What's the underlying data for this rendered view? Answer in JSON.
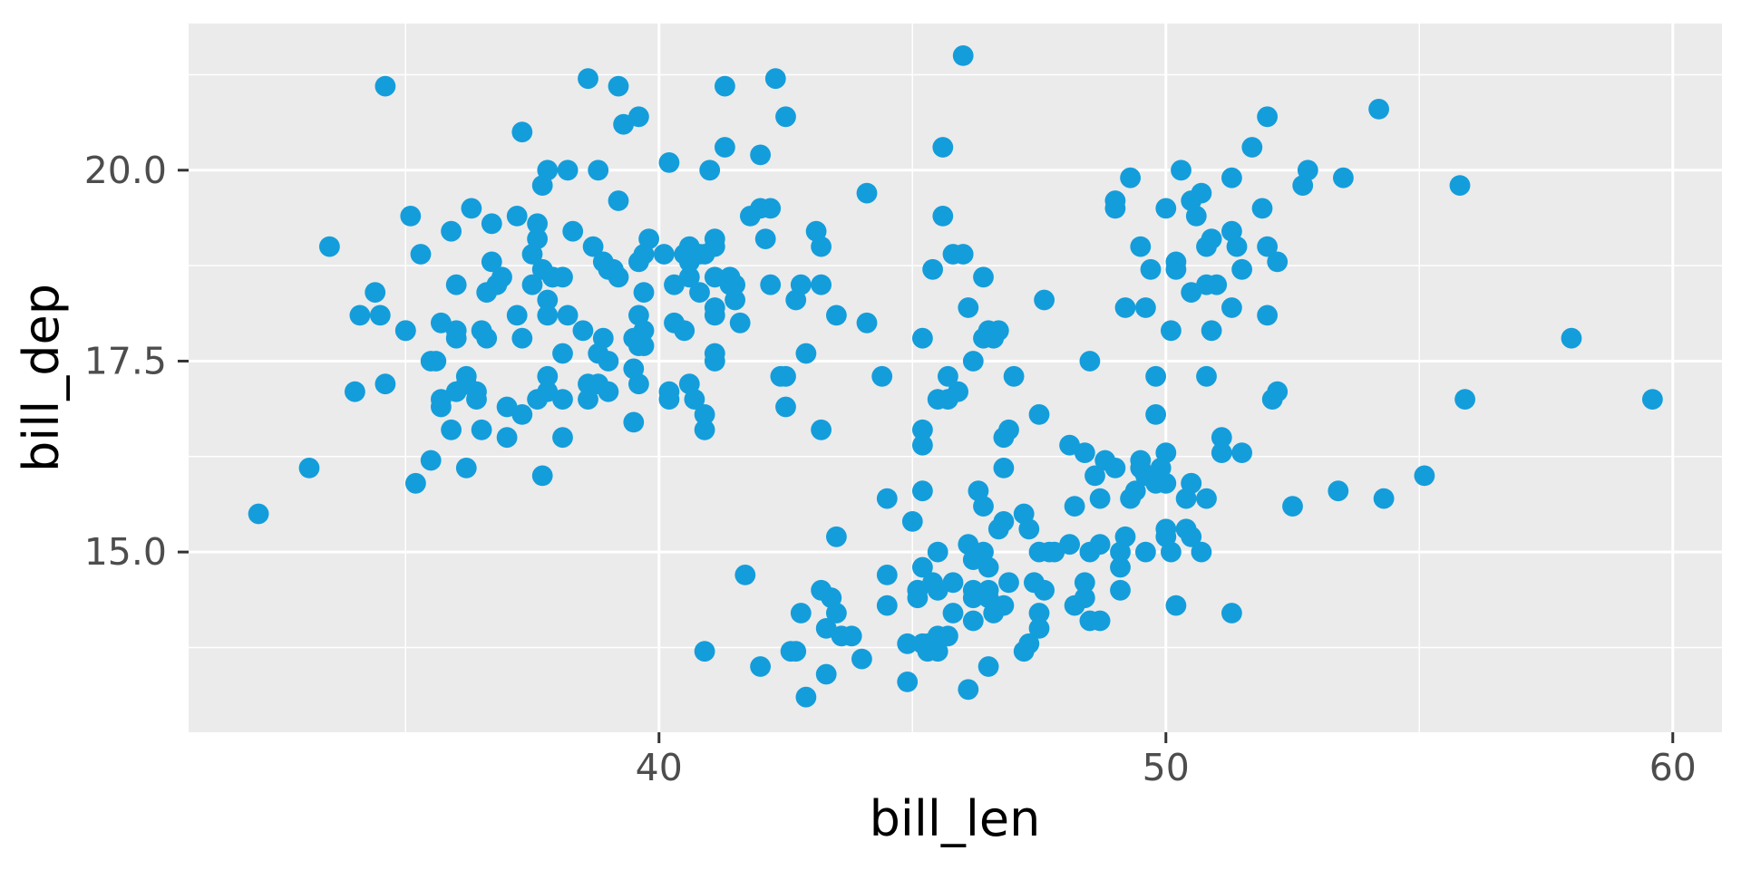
{
  "chart_data": {
    "type": "scatter",
    "title": "",
    "xlabel": "bill_len",
    "ylabel": "bill_dep",
    "xlim": [
      30.72,
      60.97
    ],
    "ylim": [
      12.64,
      21.92
    ],
    "x_ticks": [
      40,
      50,
      60
    ],
    "x_tick_labels": [
      "40",
      "50",
      "60"
    ],
    "y_ticks": [
      15.0,
      17.5,
      20.0
    ],
    "y_tick_labels": [
      "15.0",
      "17.5",
      "20.0"
    ],
    "x_minor_ticks": [
      35,
      45,
      55
    ],
    "y_minor_ticks": [
      13.75,
      16.25,
      18.75,
      21.25
    ],
    "grid": "major+minor",
    "legend": "none",
    "colors": {
      "point": "#149DDB",
      "panel_bg": "#EBEBEB",
      "grid": "#FFFFFF",
      "tick_mark": "#333333",
      "tick_label": "#4D4D4D",
      "axis_title": "#000000",
      "figure_bg": "#FFFFFF"
    },
    "points": [
      [
        39.1,
        18.7
      ],
      [
        39.5,
        17.4
      ],
      [
        40.3,
        18.0
      ],
      [
        36.7,
        19.3
      ],
      [
        39.3,
        20.6
      ],
      [
        38.9,
        17.8
      ],
      [
        39.2,
        19.6
      ],
      [
        34.1,
        18.1
      ],
      [
        42.0,
        20.2
      ],
      [
        37.8,
        17.1
      ],
      [
        37.8,
        17.3
      ],
      [
        41.1,
        17.6
      ],
      [
        38.6,
        21.2
      ],
      [
        34.6,
        21.1
      ],
      [
        36.6,
        17.8
      ],
      [
        38.7,
        19.0
      ],
      [
        42.5,
        20.7
      ],
      [
        34.4,
        18.4
      ],
      [
        46.0,
        21.5
      ],
      [
        37.8,
        18.3
      ],
      [
        37.7,
        18.7
      ],
      [
        35.9,
        19.2
      ],
      [
        38.2,
        18.1
      ],
      [
        38.8,
        17.2
      ],
      [
        35.3,
        18.9
      ],
      [
        40.6,
        18.6
      ],
      [
        40.5,
        17.9
      ],
      [
        37.9,
        18.6
      ],
      [
        40.5,
        18.9
      ],
      [
        39.5,
        16.7
      ],
      [
        37.2,
        18.1
      ],
      [
        39.5,
        17.8
      ],
      [
        40.9,
        18.9
      ],
      [
        36.4,
        17.0
      ],
      [
        39.2,
        21.1
      ],
      [
        38.8,
        20.0
      ],
      [
        42.2,
        18.5
      ],
      [
        37.6,
        19.3
      ],
      [
        39.8,
        19.1
      ],
      [
        36.5,
        17.9
      ],
      [
        40.8,
        18.4
      ],
      [
        36.0,
        18.5
      ],
      [
        44.1,
        19.7
      ],
      [
        37.0,
        16.9
      ],
      [
        39.6,
        18.8
      ],
      [
        41.1,
        19.0
      ],
      [
        37.5,
        18.9
      ],
      [
        36.0,
        17.9
      ],
      [
        42.3,
        21.2
      ],
      [
        39.6,
        17.7
      ],
      [
        40.1,
        18.9
      ],
      [
        35.0,
        17.9
      ],
      [
        42.0,
        19.5
      ],
      [
        34.5,
        18.1
      ],
      [
        41.4,
        18.6
      ],
      [
        39.0,
        17.5
      ],
      [
        40.6,
        18.8
      ],
      [
        36.5,
        16.6
      ],
      [
        37.6,
        19.1
      ],
      [
        35.7,
        16.9
      ],
      [
        41.3,
        21.1
      ],
      [
        37.6,
        17.0
      ],
      [
        41.1,
        18.2
      ],
      [
        36.4,
        17.1
      ],
      [
        41.6,
        18.0
      ],
      [
        35.5,
        16.2
      ],
      [
        41.1,
        19.1
      ],
      [
        35.9,
        16.6
      ],
      [
        41.8,
        19.4
      ],
      [
        33.5,
        19.0
      ],
      [
        39.7,
        18.4
      ],
      [
        39.6,
        17.2
      ],
      [
        45.8,
        18.9
      ],
      [
        35.5,
        17.5
      ],
      [
        42.8,
        18.5
      ],
      [
        40.9,
        16.8
      ],
      [
        37.2,
        19.4
      ],
      [
        36.2,
        16.1
      ],
      [
        42.1,
        19.1
      ],
      [
        34.6,
        17.2
      ],
      [
        42.9,
        17.6
      ],
      [
        36.7,
        18.8
      ],
      [
        35.1,
        19.4
      ],
      [
        37.3,
        17.8
      ],
      [
        41.3,
        20.3
      ],
      [
        36.3,
        19.5
      ],
      [
        36.9,
        18.6
      ],
      [
        38.3,
        19.2
      ],
      [
        38.9,
        18.8
      ],
      [
        35.7,
        18.0
      ],
      [
        41.1,
        18.1
      ],
      [
        34.0,
        17.1
      ],
      [
        39.6,
        18.1
      ],
      [
        36.2,
        17.3
      ],
      [
        40.8,
        18.9
      ],
      [
        38.1,
        18.6
      ],
      [
        40.3,
        18.5
      ],
      [
        33.1,
        16.1
      ],
      [
        43.2,
        18.5
      ],
      [
        35.0,
        17.9
      ],
      [
        41.0,
        20.0
      ],
      [
        37.7,
        16.0
      ],
      [
        37.8,
        20.0
      ],
      [
        37.9,
        18.6
      ],
      [
        39.7,
        18.9
      ],
      [
        38.6,
        17.2
      ],
      [
        38.2,
        20.0
      ],
      [
        38.1,
        17.0
      ],
      [
        43.2,
        19.0
      ],
      [
        38.1,
        16.5
      ],
      [
        45.6,
        20.3
      ],
      [
        39.7,
        17.7
      ],
      [
        42.2,
        19.5
      ],
      [
        39.6,
        20.7
      ],
      [
        42.7,
        18.3
      ],
      [
        38.6,
        17.0
      ],
      [
        37.3,
        20.5
      ],
      [
        35.7,
        17.0
      ],
      [
        41.1,
        18.6
      ],
      [
        36.2,
        17.2
      ],
      [
        37.7,
        19.8
      ],
      [
        40.2,
        17.0
      ],
      [
        41.4,
        18.5
      ],
      [
        35.2,
        15.9
      ],
      [
        40.6,
        19.0
      ],
      [
        38.8,
        17.6
      ],
      [
        41.5,
        18.3
      ],
      [
        39.0,
        17.1
      ],
      [
        44.1,
        18.0
      ],
      [
        38.5,
        17.9
      ],
      [
        43.1,
        19.2
      ],
      [
        36.8,
        18.5
      ],
      [
        37.5,
        18.5
      ],
      [
        38.1,
        17.6
      ],
      [
        41.1,
        17.5
      ],
      [
        35.6,
        17.5
      ],
      [
        40.2,
        20.1
      ],
      [
        37.0,
        16.5
      ],
      [
        39.7,
        17.9
      ],
      [
        40.2,
        17.1
      ],
      [
        40.6,
        17.2
      ],
      [
        32.1,
        15.5
      ],
      [
        40.7,
        17.0
      ],
      [
        37.3,
        16.8
      ],
      [
        39.0,
        18.7
      ],
      [
        39.2,
        18.6
      ],
      [
        36.6,
        18.4
      ],
      [
        36.0,
        17.8
      ],
      [
        37.8,
        18.1
      ],
      [
        36.0,
        17.1
      ],
      [
        41.5,
        18.5
      ],
      [
        46.1,
        13.2
      ],
      [
        50.0,
        16.3
      ],
      [
        48.7,
        14.1
      ],
      [
        50.0,
        15.2
      ],
      [
        47.6,
        14.5
      ],
      [
        46.5,
        13.5
      ],
      [
        45.4,
        14.6
      ],
      [
        46.7,
        15.3
      ],
      [
        43.3,
        13.4
      ],
      [
        46.8,
        15.4
      ],
      [
        40.9,
        13.7
      ],
      [
        49.0,
        16.1
      ],
      [
        45.5,
        13.7
      ],
      [
        48.4,
        14.6
      ],
      [
        45.8,
        14.6
      ],
      [
        49.3,
        15.7
      ],
      [
        42.0,
        13.5
      ],
      [
        49.2,
        15.2
      ],
      [
        46.2,
        14.5
      ],
      [
        48.7,
        15.1
      ],
      [
        50.2,
        14.3
      ],
      [
        45.1,
        14.5
      ],
      [
        46.5,
        14.5
      ],
      [
        46.3,
        15.8
      ],
      [
        42.9,
        13.1
      ],
      [
        46.1,
        15.1
      ],
      [
        44.5,
        14.3
      ],
      [
        47.8,
        15.0
      ],
      [
        48.2,
        14.3
      ],
      [
        50.0,
        15.3
      ],
      [
        47.3,
        15.3
      ],
      [
        42.8,
        14.2
      ],
      [
        45.1,
        14.5
      ],
      [
        59.6,
        17.0
      ],
      [
        49.1,
        14.8
      ],
      [
        48.4,
        16.3
      ],
      [
        42.6,
        13.7
      ],
      [
        44.4,
        17.3
      ],
      [
        44.0,
        13.6
      ],
      [
        48.7,
        15.7
      ],
      [
        42.7,
        13.7
      ],
      [
        49.6,
        16.0
      ],
      [
        45.3,
        13.7
      ],
      [
        49.6,
        15.0
      ],
      [
        50.5,
        15.9
      ],
      [
        43.6,
        13.9
      ],
      [
        45.5,
        13.9
      ],
      [
        50.5,
        15.9
      ],
      [
        44.9,
        13.3
      ],
      [
        45.2,
        15.8
      ],
      [
        46.6,
        14.2
      ],
      [
        48.5,
        14.1
      ],
      [
        45.1,
        14.4
      ],
      [
        50.1,
        15.0
      ],
      [
        46.5,
        14.4
      ],
      [
        45.0,
        15.4
      ],
      [
        43.8,
        13.9
      ],
      [
        45.5,
        15.0
      ],
      [
        43.2,
        14.5
      ],
      [
        50.4,
        15.3
      ],
      [
        45.3,
        13.8
      ],
      [
        46.2,
        14.9
      ],
      [
        45.7,
        13.9
      ],
      [
        54.3,
        15.7
      ],
      [
        45.8,
        14.2
      ],
      [
        49.8,
        16.8
      ],
      [
        46.2,
        14.4
      ],
      [
        49.5,
        16.2
      ],
      [
        43.5,
        14.2
      ],
      [
        50.7,
        15.0
      ],
      [
        47.7,
        15.0
      ],
      [
        46.4,
        15.6
      ],
      [
        48.2,
        15.6
      ],
      [
        46.5,
        14.8
      ],
      [
        46.4,
        15.0
      ],
      [
        48.6,
        16.0
      ],
      [
        47.5,
        14.2
      ],
      [
        51.1,
        16.3
      ],
      [
        45.2,
        13.8
      ],
      [
        45.2,
        16.4
      ],
      [
        49.1,
        14.5
      ],
      [
        52.5,
        15.6
      ],
      [
        47.4,
        14.6
      ],
      [
        50.0,
        15.9
      ],
      [
        44.9,
        13.8
      ],
      [
        50.8,
        17.3
      ],
      [
        43.4,
        14.4
      ],
      [
        51.3,
        14.2
      ],
      [
        47.5,
        14.0
      ],
      [
        52.1,
        17.0
      ],
      [
        47.5,
        15.0
      ],
      [
        52.2,
        17.1
      ],
      [
        45.5,
        14.5
      ],
      [
        49.5,
        16.1
      ],
      [
        44.5,
        14.7
      ],
      [
        50.8,
        15.7
      ],
      [
        49.4,
        15.8
      ],
      [
        46.9,
        14.6
      ],
      [
        48.4,
        14.4
      ],
      [
        51.1,
        16.5
      ],
      [
        48.5,
        15.0
      ],
      [
        55.9,
        17.0
      ],
      [
        47.2,
        15.5
      ],
      [
        49.1,
        15.0
      ],
      [
        47.3,
        13.8
      ],
      [
        46.8,
        16.1
      ],
      [
        41.7,
        14.7
      ],
      [
        53.4,
        15.8
      ],
      [
        43.3,
        14.0
      ],
      [
        48.1,
        15.1
      ],
      [
        50.5,
        15.2
      ],
      [
        49.8,
        15.9
      ],
      [
        43.5,
        15.2
      ],
      [
        51.5,
        16.3
      ],
      [
        46.2,
        14.1
      ],
      [
        55.1,
        16.0
      ],
      [
        44.5,
        15.7
      ],
      [
        48.8,
        16.2
      ],
      [
        47.2,
        13.7
      ],
      [
        46.8,
        14.3
      ],
      [
        50.4,
        15.7
      ],
      [
        45.2,
        14.8
      ],
      [
        49.9,
        16.1
      ],
      [
        46.5,
        17.9
      ],
      [
        50.0,
        19.5
      ],
      [
        51.3,
        19.2
      ],
      [
        45.4,
        18.7
      ],
      [
        52.7,
        19.8
      ],
      [
        45.2,
        17.8
      ],
      [
        46.1,
        18.2
      ],
      [
        51.3,
        18.2
      ],
      [
        46.0,
        18.9
      ],
      [
        51.3,
        19.9
      ],
      [
        46.6,
        17.8
      ],
      [
        51.7,
        20.3
      ],
      [
        47.0,
        17.3
      ],
      [
        52.0,
        18.1
      ],
      [
        45.9,
        17.1
      ],
      [
        50.5,
        19.6
      ],
      [
        50.3,
        20.0
      ],
      [
        58.0,
        17.8
      ],
      [
        46.4,
        18.6
      ],
      [
        49.2,
        18.2
      ],
      [
        42.4,
        17.3
      ],
      [
        48.5,
        17.5
      ],
      [
        43.2,
        16.6
      ],
      [
        50.6,
        19.4
      ],
      [
        46.7,
        17.9
      ],
      [
        52.0,
        19.0
      ],
      [
        50.5,
        18.4
      ],
      [
        49.5,
        19.0
      ],
      [
        46.4,
        17.8
      ],
      [
        52.8,
        20.0
      ],
      [
        40.9,
        16.6
      ],
      [
        54.2,
        20.8
      ],
      [
        42.5,
        16.9
      ],
      [
        51.0,
        18.5
      ],
      [
        49.7,
        18.7
      ],
      [
        47.5,
        16.8
      ],
      [
        47.6,
        18.3
      ],
      [
        52.0,
        20.7
      ],
      [
        46.9,
        16.6
      ],
      [
        53.5,
        19.9
      ],
      [
        49.0,
        19.5
      ],
      [
        46.2,
        17.5
      ],
      [
        50.9,
        19.1
      ],
      [
        45.5,
        17.0
      ],
      [
        50.9,
        17.9
      ],
      [
        50.8,
        18.5
      ],
      [
        50.1,
        17.9
      ],
      [
        49.0,
        19.6
      ],
      [
        51.5,
        18.7
      ],
      [
        49.8,
        17.3
      ],
      [
        48.1,
        16.4
      ],
      [
        51.4,
        19.0
      ],
      [
        45.7,
        17.3
      ],
      [
        50.7,
        19.7
      ],
      [
        42.5,
        17.3
      ],
      [
        52.2,
        18.8
      ],
      [
        45.2,
        16.6
      ],
      [
        49.3,
        19.9
      ],
      [
        50.2,
        18.8
      ],
      [
        45.6,
        19.4
      ],
      [
        51.9,
        19.5
      ],
      [
        46.8,
        16.5
      ],
      [
        45.7,
        17.0
      ],
      [
        55.8,
        19.8
      ],
      [
        43.5,
        18.1
      ],
      [
        49.6,
        18.2
      ],
      [
        50.8,
        19.0
      ],
      [
        50.2,
        18.7
      ]
    ]
  }
}
